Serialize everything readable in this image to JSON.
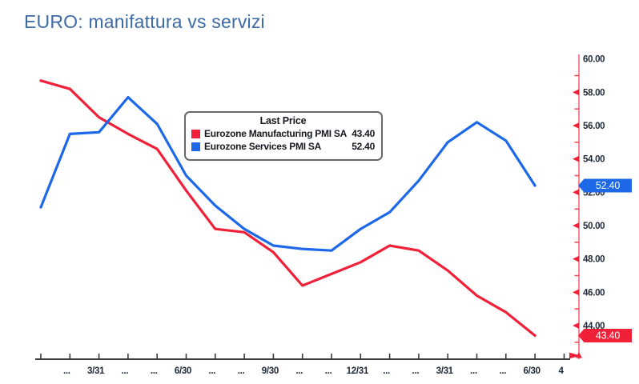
{
  "title": "EURO: manifattura vs servizi",
  "title_color": "#3c6ba5",
  "legend": {
    "title": "Last Price",
    "items": [
      {
        "label": "Eurozone Manufacturing PMI SA",
        "value": "43.40",
        "color": "#f02038"
      },
      {
        "label": "Eurozone Services PMI SA",
        "value": "52.40",
        "color": "#1c68e8"
      }
    ]
  },
  "chart_data": {
    "type": "line",
    "title": "EURO: manifattura vs servizi",
    "x_description": "Monthly observations, Jan 2022 - Jun 2023; quarter-end dates labeled",
    "x_tick_labels": [
      "",
      "...",
      "3/31",
      "...",
      "...",
      "6/30",
      "...",
      "...",
      "9/30",
      "...",
      "...",
      "12/31",
      "...",
      "...",
      "3/31",
      "...",
      "...",
      "6/30",
      "4"
    ],
    "series": [
      {
        "name": "Eurozone Manufacturing PMI SA",
        "color": "#f02038",
        "last_price": 43.4,
        "values": [
          58.7,
          58.2,
          56.5,
          55.5,
          54.6,
          52.1,
          49.8,
          49.6,
          48.4,
          46.4,
          47.1,
          47.8,
          48.8,
          48.5,
          47.3,
          45.8,
          44.8,
          43.4
        ]
      },
      {
        "name": "Eurozone Services PMI SA",
        "color": "#1c68e8",
        "last_price": 52.4,
        "values": [
          51.1,
          55.5,
          55.6,
          57.7,
          56.1,
          53.0,
          51.2,
          49.8,
          48.8,
          48.6,
          48.5,
          49.8,
          50.8,
          52.7,
          55.0,
          56.2,
          55.1,
          52.4
        ]
      }
    ],
    "y_axis": {
      "side": "right",
      "range": [
        42.1,
        60.4
      ],
      "major_tick_values": [
        44,
        46,
        48,
        50,
        52,
        54,
        56,
        58,
        60
      ],
      "major_tick_labels": [
        "44.00",
        "46.00",
        "48.00",
        "50.00",
        "52.00",
        "54.00",
        "56.00",
        "58.00",
        "60.00"
      ],
      "minor_tick_values": [
        43,
        45,
        47,
        49,
        51,
        53,
        55,
        57,
        59
      ]
    },
    "axis_tags": [
      {
        "text": "52.40",
        "value": 52.4,
        "color": "#1c68e8"
      },
      {
        "text": "43.40",
        "value": 43.4,
        "color": "#f02038"
      }
    ],
    "grid": false,
    "legend_position": "inside top-center",
    "colors": {
      "y_axis_line": "#f44558",
      "tick_arrow": "#f02038",
      "x_axis_line": "#3a3a3a",
      "axis_label_text": "#1e2835"
    }
  }
}
